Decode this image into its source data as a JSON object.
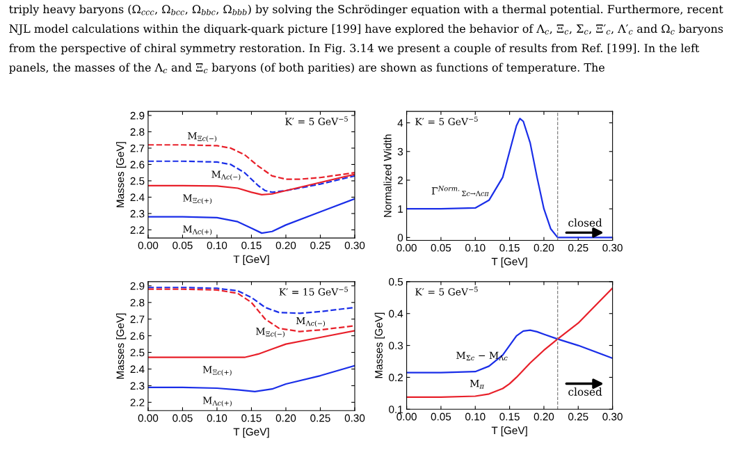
{
  "chart_data": [
    {
      "type": "line",
      "xlabel": "T [GeV]",
      "ylabel": "Masses [GeV]",
      "xlim": [
        0,
        0.3
      ],
      "ylim": [
        2.15,
        2.925
      ],
      "xticks": [
        {
          "value": 0,
          "label": "0.00"
        },
        {
          "value": 0.05,
          "label": "0.05"
        },
        {
          "value": 0.1,
          "label": "0.10"
        },
        {
          "value": 0.15,
          "label": "0.15"
        },
        {
          "value": 0.2,
          "label": "0.20"
        },
        {
          "value": 0.25,
          "label": "0.25"
        },
        {
          "value": 0.3,
          "label": "0.30"
        }
      ],
      "yticks": [
        2.2,
        2.3,
        2.4,
        2.5,
        2.6,
        2.7,
        2.8,
        2.9
      ],
      "annotations": [
        "triply heavy baryons (Ω$_{ccc}$, Ω$_{bcc}$, Ω$_{bbc}$, Ω$_{bbb}$) by solving the Schrödinger equation with a thermal potential. Furthermore, recent NJL model calculations within the diquark-quark picture [199] have explored the behavior of Λ$_{c}$, Ξ$_{c}$, Σ$_{c}$, Ξ′$_{c}$, Λ′$_{c}$ and Ω$_{c}$ baryons from the perspective of chiral symmetry restoration. In Fig. 3.14 we present a couple of results from Ref. [199]. In the left panels, the masses of the Λ$_{c}$ and Ξ$_{c}$ baryons (of both parities) are shown as functions of temperature. The",
        "K′ = 5 GeV$^{−5}$"
      ],
      "series": [
        {
          "name": "M$_{Ξc(−)}$",
          "color": "#e8202a",
          "line_style": "dashed",
          "x": [
            0,
            0.05,
            0.1,
            0.12,
            0.14,
            0.16,
            0.18,
            0.2,
            0.22,
            0.25,
            0.3
          ],
          "values": [
            2.72,
            2.72,
            2.715,
            2.7,
            2.66,
            2.59,
            2.53,
            2.51,
            2.51,
            2.52,
            2.55
          ]
        },
        {
          "name": "M$_{Λc(−)}$",
          "color": "#1a2ee8",
          "line_style": "dashed",
          "x": [
            0,
            0.05,
            0.1,
            0.12,
            0.14,
            0.16,
            0.17,
            0.18,
            0.2,
            0.25,
            0.3
          ],
          "values": [
            2.62,
            2.62,
            2.615,
            2.6,
            2.55,
            2.47,
            2.44,
            2.43,
            2.44,
            2.48,
            2.53
          ]
        },
        {
          "name": "M$_{Ξc(+)}$",
          "color": "#e8202a",
          "line_style": "solid",
          "x": [
            0,
            0.05,
            0.1,
            0.13,
            0.15,
            0.165,
            0.18,
            0.2,
            0.25,
            0.3
          ],
          "values": [
            2.47,
            2.47,
            2.468,
            2.455,
            2.43,
            2.415,
            2.42,
            2.44,
            2.49,
            2.54
          ]
        },
        {
          "name": "M$_{Λc(+)}$",
          "color": "#1a2ee8",
          "line_style": "solid",
          "x": [
            0,
            0.05,
            0.1,
            0.13,
            0.15,
            0.165,
            0.18,
            0.2,
            0.25,
            0.3
          ],
          "values": [
            2.28,
            2.28,
            2.275,
            2.25,
            2.21,
            2.18,
            2.19,
            2.23,
            2.31,
            2.39
          ]
        }
      ]
    },
    {
      "type": "line",
      "xlabel": "T [GeV]",
      "ylabel": "Normalized Width",
      "xlim": [
        0,
        0.3
      ],
      "ylim": [
        -0.1,
        4.4
      ],
      "xticks": [
        {
          "value": 0,
          "label": "0.00"
        },
        {
          "value": 0.05,
          "label": "0.05"
        },
        {
          "value": 0.1,
          "label": "0.10"
        },
        {
          "value": 0.15,
          "label": "0.15"
        },
        {
          "value": 0.2,
          "label": "0.20"
        },
        {
          "value": 0.25,
          "label": "0.25"
        },
        {
          "value": 0.3,
          "label": "0.30"
        }
      ],
      "yticks": [
        0,
        1,
        2,
        3,
        4
      ],
      "annotations": [
        "K′ = 5 GeV$^{−5}$",
        "closed"
      ],
      "ref_lines": [
        {
          "axis": "x",
          "value": 0.22,
          "color": "#808080",
          "line_style": "dashed"
        }
      ],
      "series": [
        {
          "name": "Γ$^{Norm.}$$_{Σc→Λcπ}$",
          "color": "#1a2ee8",
          "line_style": "solid",
          "x": [
            0,
            0.05,
            0.1,
            0.12,
            0.14,
            0.15,
            0.16,
            0.165,
            0.17,
            0.18,
            0.19,
            0.2,
            0.21,
            0.22,
            0.25,
            0.3
          ],
          "values": [
            1,
            1,
            1.03,
            1.3,
            2.1,
            3.0,
            3.9,
            4.15,
            4.05,
            3.3,
            2.1,
            1.0,
            0.3,
            0,
            0,
            0
          ]
        }
      ]
    },
    {
      "type": "line",
      "xlabel": "T [GeV]",
      "ylabel": "Masses [GeV]",
      "xlim": [
        0,
        0.3
      ],
      "ylim": [
        2.15,
        2.925
      ],
      "xticks": [
        {
          "value": 0,
          "label": "0.00"
        },
        {
          "value": 0.05,
          "label": "0.05"
        },
        {
          "value": 0.1,
          "label": "0.10"
        },
        {
          "value": 0.15,
          "label": "0.15"
        },
        {
          "value": 0.2,
          "label": "0.20"
        },
        {
          "value": 0.25,
          "label": "0.25"
        },
        {
          "value": 0.3,
          "label": "0.30"
        }
      ],
      "yticks": [
        2.2,
        2.3,
        2.4,
        2.5,
        2.6,
        2.7,
        2.8,
        2.9
      ],
      "annotations": [
        "K′ = 15 GeV$^{−5}$"
      ],
      "series": [
        {
          "name": "M$_{Λc(−)}$",
          "color": "#1a2ee8",
          "line_style": "dashed",
          "x": [
            0,
            0.05,
            0.1,
            0.13,
            0.15,
            0.17,
            0.19,
            0.22,
            0.25,
            0.3
          ],
          "values": [
            2.89,
            2.89,
            2.885,
            2.87,
            2.83,
            2.77,
            2.74,
            2.735,
            2.745,
            2.77
          ]
        },
        {
          "name": "M$_{Ξc(−)}$",
          "color": "#e8202a",
          "line_style": "dashed",
          "x": [
            0,
            0.05,
            0.1,
            0.13,
            0.15,
            0.17,
            0.19,
            0.22,
            0.25,
            0.3
          ],
          "values": [
            2.88,
            2.88,
            2.875,
            2.855,
            2.8,
            2.7,
            2.645,
            2.625,
            2.635,
            2.66
          ]
        },
        {
          "name": "M$_{Ξc(+)}$",
          "color": "#e8202a",
          "line_style": "solid",
          "x": [
            0,
            0.05,
            0.1,
            0.14,
            0.16,
            0.18,
            0.2,
            0.25,
            0.3
          ],
          "values": [
            2.47,
            2.47,
            2.47,
            2.47,
            2.49,
            2.52,
            2.55,
            2.59,
            2.63
          ]
        },
        {
          "name": "M$_{Λc(+)}$",
          "color": "#1a2ee8",
          "line_style": "solid",
          "x": [
            0,
            0.05,
            0.1,
            0.13,
            0.155,
            0.18,
            0.2,
            0.25,
            0.3
          ],
          "values": [
            2.29,
            2.29,
            2.285,
            2.275,
            2.265,
            2.28,
            2.31,
            2.36,
            2.42
          ]
        }
      ]
    },
    {
      "type": "line",
      "xlabel": "T [GeV]",
      "ylabel": "Masses [GeV]",
      "xlim": [
        0,
        0.3
      ],
      "ylim": [
        0.1,
        0.5
      ],
      "xticks": [
        {
          "value": 0,
          "label": "0.00"
        },
        {
          "value": 0.05,
          "label": "0.05"
        },
        {
          "value": 0.1,
          "label": "0.10"
        },
        {
          "value": 0.15,
          "label": "0.15"
        },
        {
          "value": 0.2,
          "label": "0.20"
        },
        {
          "value": 0.25,
          "label": "0.25"
        },
        {
          "value": 0.3,
          "label": "0.30"
        }
      ],
      "yticks": [
        0.1,
        0.2,
        0.3,
        0.4,
        0.5
      ],
      "annotations": [
        "K′ = 5 GeV$^{−5}$",
        "closed"
      ],
      "ref_lines": [
        {
          "axis": "x",
          "value": 0.22,
          "color": "#808080",
          "line_style": "dashed"
        }
      ],
      "series": [
        {
          "name": "M$_{Σc}$ − M$_{Λc}$",
          "color": "#1a2ee8",
          "line_style": "solid",
          "x": [
            0,
            0.05,
            0.1,
            0.12,
            0.14,
            0.15,
            0.16,
            0.17,
            0.18,
            0.19,
            0.2,
            0.22,
            0.25,
            0.3
          ],
          "values": [
            0.215,
            0.215,
            0.218,
            0.235,
            0.27,
            0.3,
            0.33,
            0.345,
            0.348,
            0.343,
            0.335,
            0.32,
            0.3,
            0.26
          ]
        },
        {
          "name": "M$_{π}$",
          "color": "#e8202a",
          "line_style": "solid",
          "x": [
            0,
            0.05,
            0.1,
            0.12,
            0.14,
            0.15,
            0.16,
            0.18,
            0.2,
            0.22,
            0.25,
            0.3
          ],
          "values": [
            0.138,
            0.138,
            0.141,
            0.148,
            0.165,
            0.18,
            0.2,
            0.245,
            0.285,
            0.32,
            0.37,
            0.48
          ]
        }
      ]
    }
  ]
}
